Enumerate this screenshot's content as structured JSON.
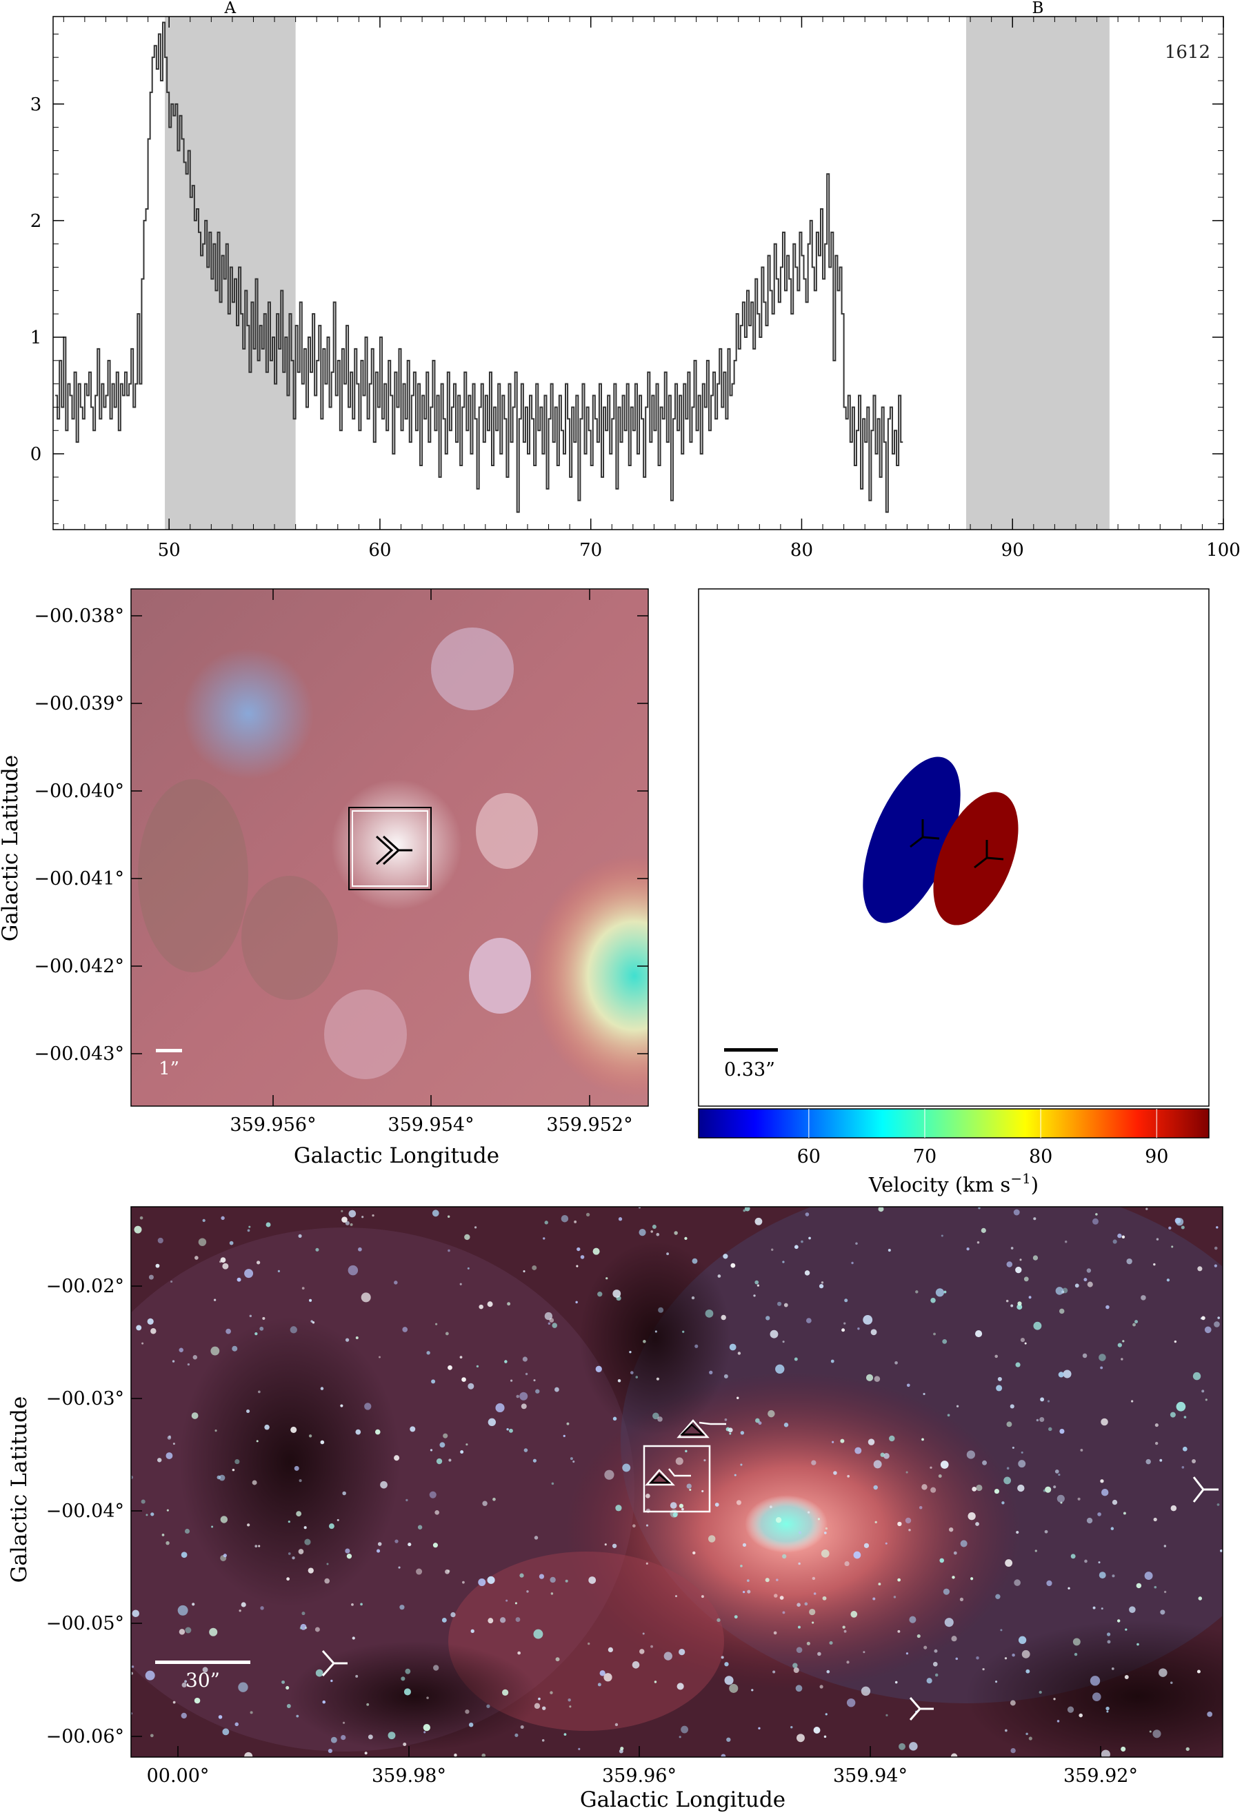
{
  "chart_data": [
    {
      "type": "line",
      "style": "step",
      "panel": "spectrum",
      "title": "",
      "annotation": "1612",
      "xlabel": "",
      "ylabel": "",
      "xlim": [
        44.5,
        100
      ],
      "ylim": [
        -0.65,
        3.75
      ],
      "xticks": [
        "50",
        "60",
        "70",
        "80",
        "90",
        "100"
      ],
      "yticks": [
        "0",
        "1",
        "2",
        "3"
      ],
      "regions": [
        {
          "label": "A",
          "from": 49.8,
          "to": 56.0
        },
        {
          "label": "B",
          "from": 87.8,
          "to": 94.6
        }
      ],
      "x_start": 44.6,
      "x_step": 0.1,
      "values": [
        0.5,
        0.3,
        0.8,
        0.4,
        1.0,
        0.2,
        0.6,
        0.5,
        0.3,
        0.7,
        0.1,
        0.6,
        0.4,
        0.3,
        0.6,
        0.5,
        0.7,
        0.4,
        0.2,
        0.5,
        0.9,
        0.3,
        0.6,
        0.4,
        0.5,
        0.8,
        0.3,
        0.6,
        0.4,
        0.7,
        0.2,
        0.6,
        0.5,
        0.7,
        0.5,
        0.6,
        0.9,
        0.4,
        0.6,
        1.2,
        0.6,
        1.5,
        2.0,
        2.1,
        2.7,
        3.1,
        3.4,
        3.5,
        3.3,
        3.6,
        3.2,
        3.7,
        3.4,
        3.1,
        2.8,
        3.0,
        2.9,
        3.0,
        2.6,
        2.9,
        2.7,
        2.5,
        2.4,
        2.6,
        2.2,
        2.3,
        2.0,
        2.1,
        1.9,
        1.7,
        1.8,
        2.0,
        1.6,
        1.9,
        1.5,
        1.8,
        1.4,
        1.9,
        1.3,
        1.7,
        1.5,
        1.8,
        1.2,
        1.6,
        1.3,
        1.5,
        1.1,
        1.6,
        1.2,
        0.9,
        1.4,
        1.1,
        0.7,
        1.3,
        0.9,
        1.5,
        0.8,
        1.1,
        0.9,
        1.2,
        0.7,
        1.3,
        0.8,
        1.0,
        0.6,
        1.2,
        0.9,
        1.4,
        0.7,
        1.0,
        0.5,
        1.2,
        0.8,
        0.3,
        1.1,
        0.7,
        1.3,
        0.6,
        0.9,
        0.4,
        1.0,
        0.7,
        1.2,
        0.5,
        0.8,
        1.1,
        0.3,
        0.9,
        0.6,
        1.0,
        0.4,
        0.7,
        1.3,
        0.5,
        0.8,
        0.2,
        0.9,
        0.6,
        1.1,
        0.4,
        0.7,
        0.3,
        0.9,
        0.6,
        0.2,
        0.8,
        0.5,
        1.0,
        0.3,
        0.6,
        0.9,
        0.1,
        0.7,
        0.4,
        1.0,
        0.3,
        0.6,
        0.2,
        0.8,
        0.5,
        0.0,
        0.7,
        0.4,
        0.9,
        0.2,
        0.6,
        0.3,
        0.8,
        0.1,
        0.5,
        0.7,
        0.2,
        0.6,
        -0.1,
        0.5,
        0.3,
        0.7,
        0.1,
        0.4,
        0.8,
        0.2,
        0.5,
        -0.2,
        0.6,
        0.3,
        0.0,
        0.7,
        0.2,
        0.4,
        0.6,
        0.1,
        0.5,
        -0.1,
        0.4,
        0.7,
        0.2,
        0.5,
        0.0,
        0.6,
        0.3,
        -0.3,
        0.4,
        0.6,
        0.1,
        0.5,
        0.2,
        0.7,
        -0.1,
        0.4,
        0.2,
        0.6,
        0.0,
        0.5,
        0.3,
        -0.2,
        0.6,
        0.1,
        0.4,
        0.7,
        -0.5,
        0.3,
        0.6,
        0.1,
        0.4,
        0.0,
        0.5,
        0.3,
        -0.1,
        0.6,
        0.2,
        0.4,
        0.0,
        0.5,
        -0.3,
        0.3,
        0.6,
        0.1,
        0.4,
        -0.1,
        0.5,
        0.2,
        0.0,
        0.6,
        0.3,
        -0.2,
        0.4,
        0.1,
        0.5,
        -0.4,
        0.3,
        0.6,
        0.0,
        0.4,
        0.2,
        -0.1,
        0.5,
        0.3,
        0.1,
        0.6,
        -0.2,
        0.4,
        0.2,
        0.5,
        0.0,
        0.3,
        0.6,
        -0.3,
        0.4,
        0.1,
        0.5,
        0.2,
        0.6,
        -0.1,
        0.4,
        0.2,
        0.6,
        0.0,
        0.5,
        0.3,
        -0.2,
        0.4,
        0.7,
        0.1,
        0.5,
        0.2,
        0.6,
        -0.1,
        0.4,
        0.3,
        0.7,
        0.1,
        0.5,
        -0.4,
        0.3,
        0.6,
        0.2,
        0.5,
        0.0,
        0.6,
        0.3,
        0.7,
        0.1,
        0.4,
        0.8,
        0.2,
        0.5,
        0.0,
        0.6,
        0.4,
        0.8,
        0.2,
        0.5,
        0.7,
        0.3,
        0.6,
        0.9,
        0.4,
        0.7,
        0.3,
        0.9,
        0.5,
        0.6,
        0.8,
        1.2,
        0.9,
        1.1,
        1.3,
        1.0,
        1.4,
        1.1,
        1.3,
        0.9,
        1.5,
        1.2,
        1.0,
        1.6,
        1.3,
        1.1,
        1.7,
        1.4,
        1.2,
        1.8,
        1.5,
        1.3,
        1.6,
        1.9,
        1.4,
        1.7,
        1.5,
        1.2,
        1.8,
        1.6,
        1.4,
        1.9,
        1.7,
        1.5,
        1.3,
        1.8,
        2.0,
        1.6,
        1.4,
        1.9,
        1.7,
        2.1,
        1.5,
        1.8,
        2.4,
        1.6,
        1.9,
        0.8,
        1.7,
        1.4,
        1.6,
        1.2,
        0.4,
        0.3,
        0.5,
        0.1,
        0.4,
        -0.1,
        0.2,
        0.5,
        -0.3,
        0.3,
        0.1,
        0.4,
        -0.4,
        0.2,
        0.5,
        0.0,
        0.3,
        -0.2,
        0.4,
        0.1,
        -0.5,
        0.3,
        0.4,
        0.0,
        0.2,
        -0.1,
        0.5,
        0.1
      ]
    },
    {
      "type": "heatmap",
      "panel": "zoom-image",
      "title": "",
      "xlabel": "Galactic Longitude",
      "ylabel": "Galactic Latitude",
      "xticks": [
        "359.956°",
        "359.954°",
        "359.952°"
      ],
      "yticks": [
        "−00.038°",
        "−00.039°",
        "−00.040°",
        "−00.041°",
        "−00.042°",
        "−00.043°"
      ],
      "scalebar": "1”"
    },
    {
      "type": "scatter",
      "panel": "maser-spots",
      "title": "",
      "xlabel": "",
      "ylabel": "",
      "scalebar": "0.33”",
      "spots": [
        {
          "velocity": 52,
          "color": "#00008b"
        },
        {
          "velocity": 91,
          "color": "#8b0000"
        }
      ],
      "colorbar": {
        "label": "Velocity (km s",
        "label_sup": "−1",
        "label_end": ")",
        "vmin": 50.5,
        "vmax": 94.5,
        "ticks": [
          "60",
          "70",
          "80",
          "90"
        ]
      }
    },
    {
      "type": "heatmap",
      "panel": "wide-image",
      "title": "",
      "xlabel": "Galactic Longitude",
      "ylabel": "Galactic Latitude",
      "xticks": [
        "00.00°",
        "359.98°",
        "359.96°",
        "359.94°",
        "359.92°"
      ],
      "yticks": [
        "−00.02°",
        "−00.03°",
        "−00.04°",
        "−00.05°",
        "−00.06°"
      ],
      "scalebar": "30”"
    }
  ]
}
